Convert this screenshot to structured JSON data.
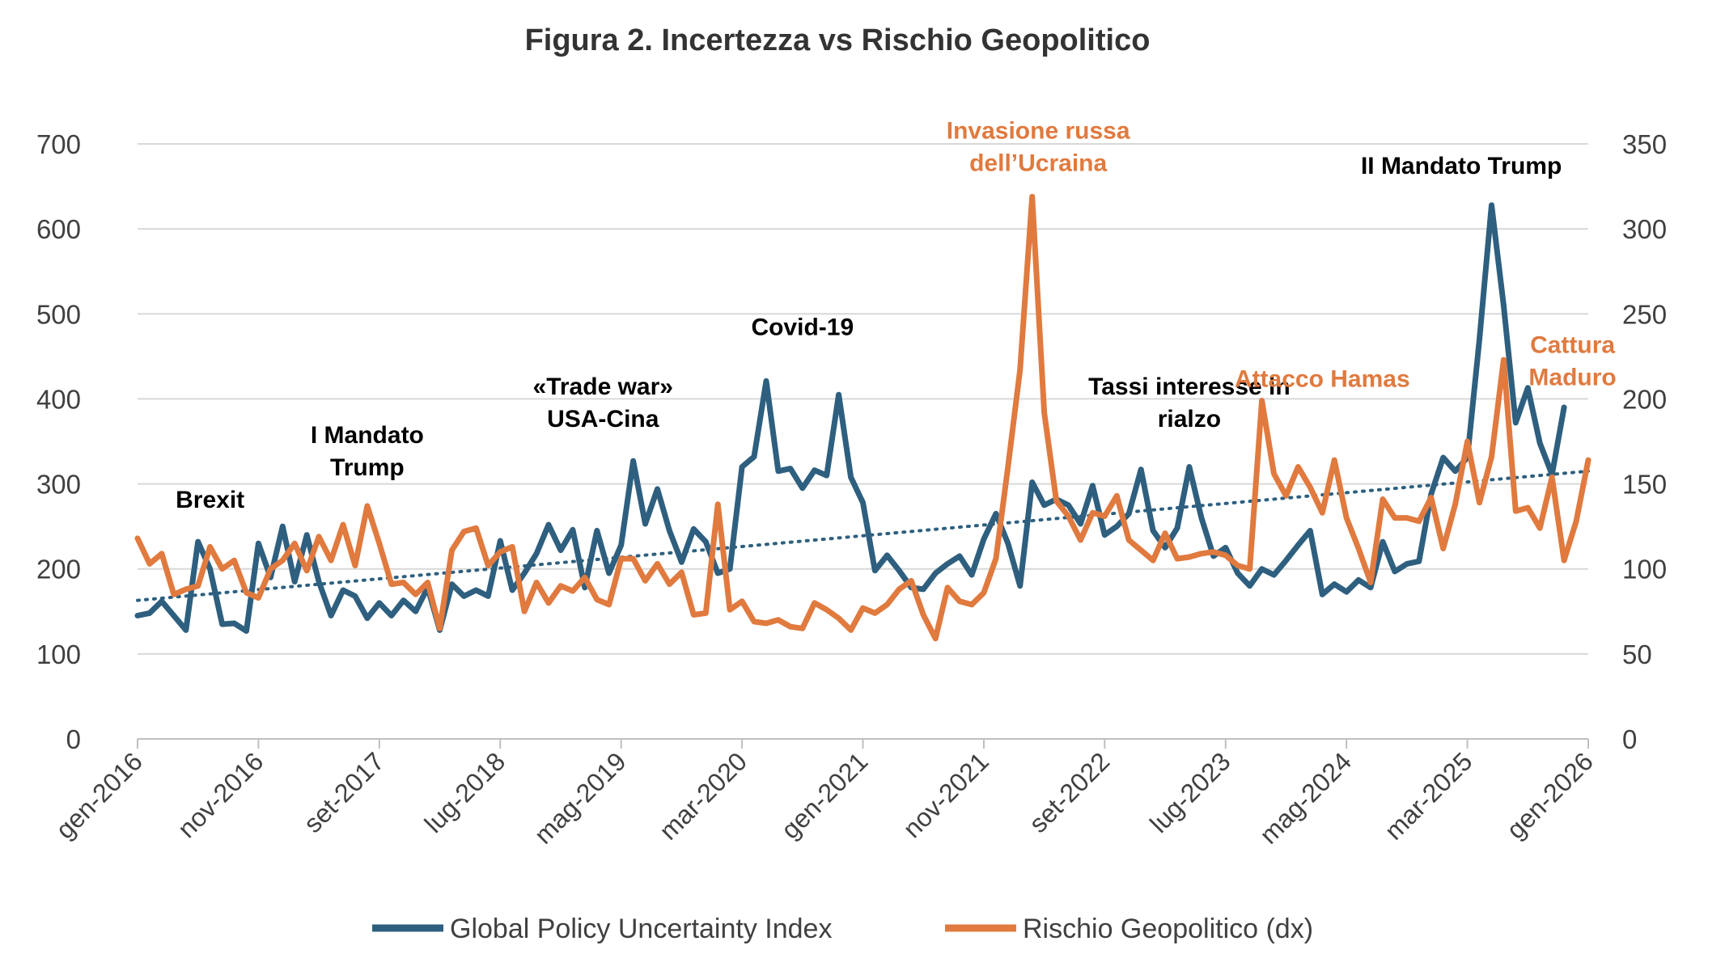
{
  "chart_data": {
    "type": "line",
    "title": "Figura 2. Incertezza vs Rischio Geopolitico",
    "colors": {
      "gepu": "#2e5f7f",
      "gpr": "#e07a3f",
      "trend": "#2e5f7f",
      "annotation_dark": "#000000",
      "annotation_orange": "#e07a3f"
    },
    "y_left": {
      "min": 0,
      "max": 700,
      "ticks": [
        "0",
        "100",
        "200",
        "300",
        "400",
        "500",
        "600",
        "700"
      ]
    },
    "y_right": {
      "min": 0,
      "max": 350,
      "ticks": [
        "0",
        "50",
        "100",
        "150",
        "200",
        "250",
        "300",
        "350"
      ]
    },
    "x_start": "2016-01",
    "x_end": "2026-01",
    "x_ticks": [
      {
        "label": "gen-2016",
        "index": 0
      },
      {
        "label": "nov-2016",
        "index": 10
      },
      {
        "label": "set-2017",
        "index": 20
      },
      {
        "label": "lug-2018",
        "index": 30
      },
      {
        "label": "mag-2019",
        "index": 40
      },
      {
        "label": "mar-2020",
        "index": 50
      },
      {
        "label": "gen-2021",
        "index": 60
      },
      {
        "label": "nov-2021",
        "index": 70
      },
      {
        "label": "set-2022",
        "index": 80
      },
      {
        "label": "lug-2023",
        "index": 90
      },
      {
        "label": "mag-2024",
        "index": 100
      },
      {
        "label": "mar-2025",
        "index": 110
      },
      {
        "label": "gen-2026",
        "index": 120
      }
    ],
    "series": [
      {
        "name": "Global Policy Uncertainty Index",
        "axis": "left",
        "values": [
          145,
          148,
          162,
          145,
          128,
          232,
          200,
          135,
          136,
          127,
          230,
          190,
          250,
          185,
          240,
          185,
          145,
          175,
          168,
          142,
          160,
          145,
          163,
          150,
          178,
          128,
          182,
          168,
          175,
          168,
          233,
          175,
          195,
          218,
          252,
          222,
          246,
          178,
          245,
          195,
          228,
          327,
          253,
          294,
          245,
          208,
          247,
          232,
          195,
          200,
          320,
          332,
          421,
          315,
          318,
          295,
          316,
          310,
          405,
          308,
          278,
          198,
          216,
          198,
          178,
          176,
          195,
          206,
          215,
          193,
          235,
          265,
          230,
          180,
          302,
          275,
          282,
          275,
          253,
          298,
          240,
          250,
          265,
          317,
          245,
          225,
          248,
          320,
          260,
          215,
          225,
          195,
          180,
          200,
          193,
          210,
          228,
          245,
          170,
          182,
          173,
          187,
          178,
          232,
          197,
          206,
          209,
          288,
          331,
          315,
          331,
          470,
          628,
          510,
          372,
          413,
          348,
          311,
          390
        ],
        "trend": [
          163,
          315
        ]
      },
      {
        "name": "Rischio Geopolitico (dx)",
        "axis": "right",
        "values": [
          118,
          103,
          109,
          85,
          88,
          90,
          113,
          100,
          105,
          86,
          83,
          100,
          105,
          115,
          99,
          119,
          105,
          126,
          102,
          137,
          115,
          91,
          92,
          85,
          92,
          65,
          111,
          122,
          124,
          102,
          110,
          113,
          75,
          92,
          80,
          90,
          87,
          95,
          82,
          79,
          106,
          106,
          93,
          103,
          91,
          98,
          73,
          74,
          138,
          76,
          81,
          69,
          68,
          70,
          66,
          65,
          80,
          76,
          71,
          64,
          77,
          74,
          79,
          88,
          93,
          73,
          59,
          89,
          81,
          79,
          86,
          106,
          160,
          217,
          319,
          192,
          140,
          131,
          117,
          133,
          131,
          143,
          117,
          111,
          105,
          121,
          106,
          107,
          109,
          110,
          108,
          102,
          100,
          199,
          156,
          143,
          160,
          148,
          133,
          164,
          130,
          112,
          92,
          141,
          130,
          130,
          128,
          142,
          112,
          138,
          175,
          139,
          166,
          223,
          134,
          136,
          124,
          154,
          105,
          128,
          164
        ]
      }
    ],
    "annotations": [
      {
        "lines": [
          "Brexit"
        ],
        "color": "dark",
        "x_index": 6,
        "y_left": 272
      },
      {
        "lines": [
          "I Mandato",
          "Trump"
        ],
        "color": "dark",
        "x_index": 19,
        "y_left": 348
      },
      {
        "lines": [
          "«Trade war»",
          "USA-Cina"
        ],
        "color": "dark",
        "x_index": 38.5,
        "y_left": 405
      },
      {
        "lines": [
          "Covid-19"
        ],
        "color": "dark",
        "x_index": 55,
        "y_left": 475
      },
      {
        "lines": [
          "Invasione russa",
          "dell’Ucraina"
        ],
        "color": "orange",
        "x_index": 74.5,
        "y_right": 353
      },
      {
        "lines": [
          "Tassi interesse in",
          "rialzo"
        ],
        "color": "dark",
        "x_index": 87,
        "y_left": 405
      },
      {
        "lines": [
          "Attacco Hamas"
        ],
        "color": "orange",
        "x_index": 98,
        "y_right": 207
      },
      {
        "lines": [
          "II Mandato Trump"
        ],
        "color": "dark",
        "x_index": 109.5,
        "y_left": 665
      },
      {
        "lines": [
          "Cattura",
          "Maduro"
        ],
        "color": "orange",
        "x_index": 118.7,
        "y_right": 227
      }
    ],
    "legend": [
      {
        "label": "Global Policy Uncertainty Index",
        "series": "gepu"
      },
      {
        "label": "Rischio Geopolitico (dx)",
        "series": "gpr"
      }
    ],
    "legend_position": "bottom"
  }
}
